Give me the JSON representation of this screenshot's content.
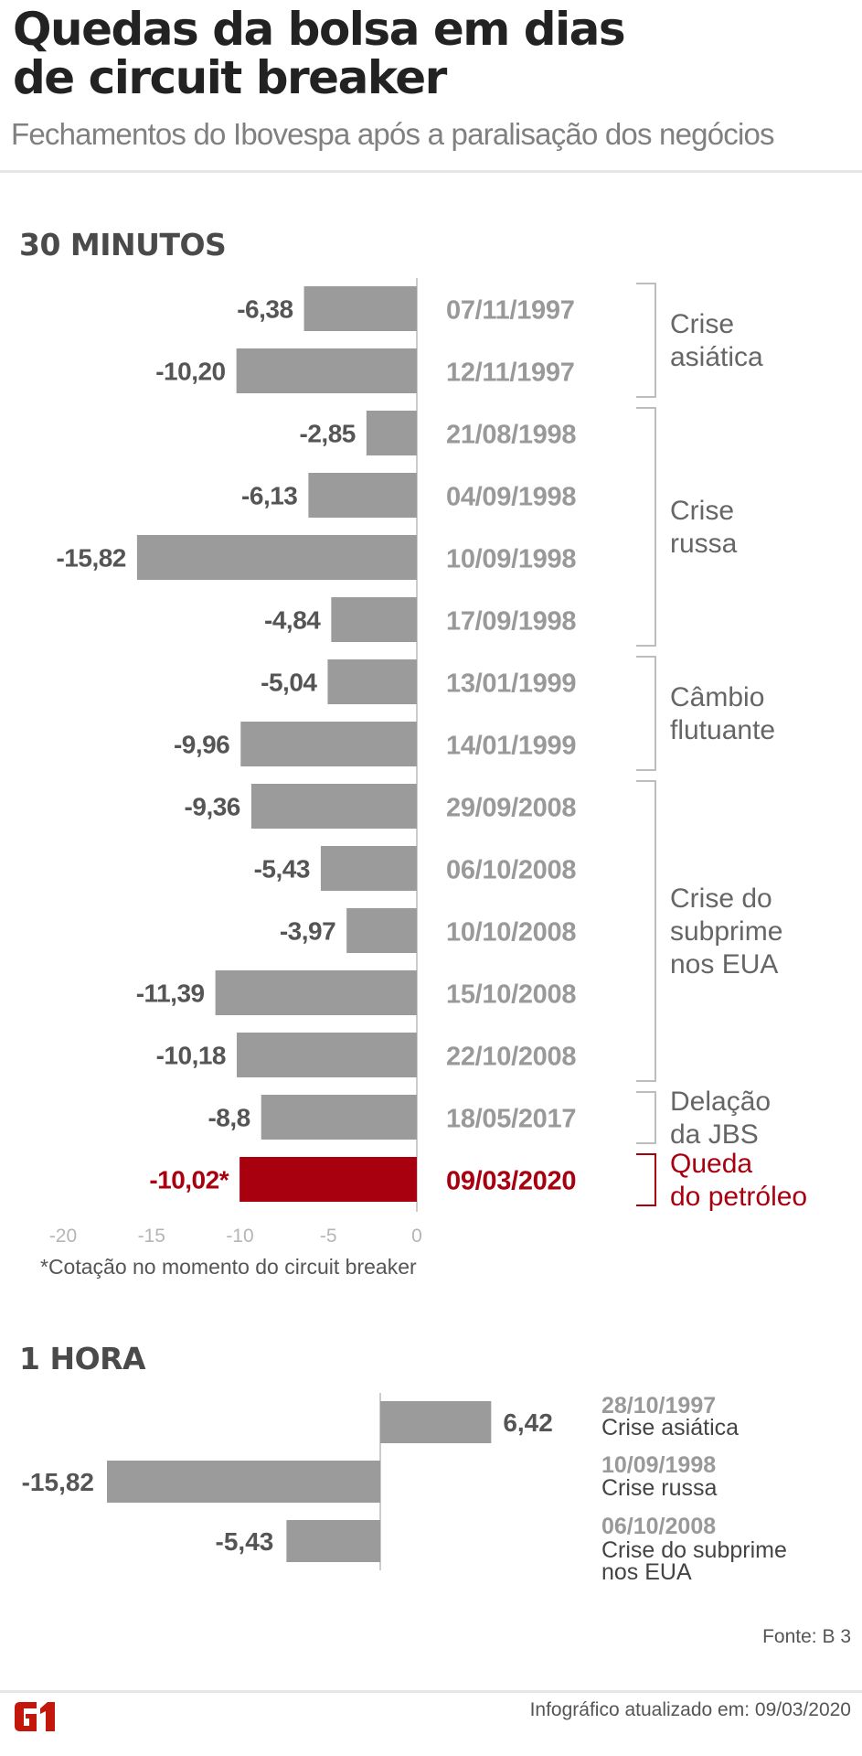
{
  "header": {
    "title_line1": "Quedas da bolsa em dias",
    "title_line2": "de circuit breaker",
    "subtitle": "Fechamentos do Ibovespa após a paralisação dos negócios"
  },
  "colors": {
    "bar": "#9b9b9b",
    "highlight": "#a8000f",
    "value_text": "#555555",
    "date_text": "#999999",
    "group_text": "#666666",
    "axis": "#cccccc",
    "logo": "#c4170c"
  },
  "chart_data": [
    {
      "type": "bar",
      "orientation": "horizontal",
      "title": "30 MINUTOS",
      "categories": [
        "07/11/1997",
        "12/11/1997",
        "21/08/1998",
        "04/09/1998",
        "10/09/1998",
        "17/09/1998",
        "13/01/1999",
        "14/01/1999",
        "29/09/2008",
        "06/10/2008",
        "10/10/2008",
        "15/10/2008",
        "22/10/2008",
        "18/05/2017",
        "09/03/2020"
      ],
      "values": [
        -6.38,
        -10.2,
        -2.85,
        -6.13,
        -15.82,
        -4.84,
        -5.04,
        -9.96,
        -9.36,
        -5.43,
        -3.97,
        -11.39,
        -10.18,
        -8.8,
        -10.02
      ],
      "value_labels": [
        "-6,38",
        "-10,20",
        "-2,85",
        "-6,13",
        "-15,82",
        "-4,84",
        "-5,04",
        "-9,96",
        "-9,36",
        "-5,43",
        "-3,97",
        "-11,39",
        "-10,18",
        "-8,8",
        "-10,02*"
      ],
      "highlight_index": 14,
      "groups": [
        {
          "label": [
            "Crise",
            "asiática"
          ],
          "from": 0,
          "to": 1
        },
        {
          "label": [
            "Crise",
            "russa"
          ],
          "from": 2,
          "to": 5
        },
        {
          "label": [
            "Câmbio",
            "flutuante"
          ],
          "from": 6,
          "to": 7
        },
        {
          "label": [
            "Crise do",
            "subprime",
            "nos EUA"
          ],
          "from": 8,
          "to": 12
        },
        {
          "label": [
            "Delação",
            "da JBS"
          ],
          "from": 13,
          "to": 13
        },
        {
          "label": [
            "Queda",
            "do petróleo"
          ],
          "from": 14,
          "to": 14,
          "highlight": true
        }
      ],
      "xlim": [
        -20,
        0
      ],
      "xticks": [
        -20,
        -15,
        -10,
        -5,
        0
      ],
      "xtick_labels": [
        "-20",
        "-15",
        "-10",
        "-5",
        "0"
      ],
      "footnote": "*Cotação no momento do circuit breaker"
    },
    {
      "type": "bar",
      "orientation": "horizontal",
      "title": "1 HORA",
      "categories": [
        "28/10/1997",
        "10/09/1998",
        "06/10/2008"
      ],
      "descriptions": [
        [
          "Crise asiática"
        ],
        [
          "Crise russa"
        ],
        [
          "Crise do subprime",
          "nos EUA"
        ]
      ],
      "values": [
        6.42,
        -15.82,
        -5.43
      ],
      "value_labels": [
        "6,42",
        "-15,82",
        "-5,43"
      ]
    }
  ],
  "footer": {
    "source": "Fonte: B 3",
    "updated": "Infográfico atualizado em: 09/03/2020",
    "logo_text": "G1"
  }
}
